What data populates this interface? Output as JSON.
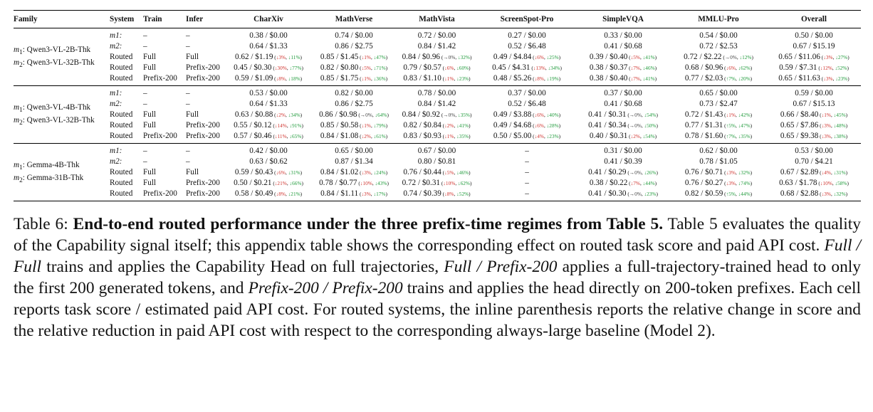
{
  "table": {
    "headers": [
      "Family",
      "System",
      "Train",
      "Infer",
      "CharXiv",
      "MathVerse",
      "MathVista",
      "ScreenSpot-Pro",
      "SimpleVQA",
      "MMLU-Pro",
      "Overall"
    ],
    "groups": [
      {
        "family": [
          {
            "m": "m",
            "sub": "1",
            "name": ": Qwen3-VL-2B-Thk"
          },
          {
            "m": "m",
            "sub": "2",
            "name": ": Qwen3-VL-32B-Thk"
          }
        ],
        "rows": [
          {
            "system": "m1:",
            "train": "–",
            "infer": "–",
            "cells": [
              {
                "v": "0.38 / $0.00"
              },
              {
                "v": "0.74 / $0.00"
              },
              {
                "v": "0.72 / $0.00"
              },
              {
                "v": "0.27 / $0.00"
              },
              {
                "v": "0.33 / $0.00"
              },
              {
                "v": "0.54 / $0.00"
              },
              {
                "v": "0.50 / $0.00"
              }
            ]
          },
          {
            "system": "m2:",
            "train": "–",
            "infer": "–",
            "cells": [
              {
                "v": "0.64 / $1.33"
              },
              {
                "v": "0.86 / $2.75"
              },
              {
                "v": "0.84 / $1.42"
              },
              {
                "v": "0.52 / $6.48"
              },
              {
                "v": "0.41 / $0.68"
              },
              {
                "v": "0.72 / $2.53"
              },
              {
                "v": "0.67 / $15.19"
              }
            ]
          },
          {
            "system": "Routed",
            "train": "Full",
            "infer": "Full",
            "cells": [
              {
                "v": "0.62 / $1.19",
                "a": "↓3%",
                "ac": "red",
                "b": "↓11%",
                "bc": "grn"
              },
              {
                "v": "0.85 / $1.45",
                "a": "↓1%",
                "ac": "red",
                "b": "↓47%",
                "bc": "grn"
              },
              {
                "v": "0.84 / $0.96",
                "a": "→0%",
                "ac": "gry",
                "b": "↓32%",
                "bc": "grn"
              },
              {
                "v": "0.49 / $4.84",
                "a": "↓6%",
                "ac": "red",
                "b": "↓25%",
                "bc": "grn"
              },
              {
                "v": "0.39 / $0.40",
                "a": "↓5%",
                "ac": "red",
                "b": "↓41%",
                "bc": "grn"
              },
              {
                "v": "0.72 / $2.22",
                "a": "→0%",
                "ac": "gry",
                "b": "↓12%",
                "bc": "grn"
              },
              {
                "v": "0.65 / $11.06",
                "a": "↓3%",
                "ac": "red",
                "b": "↓27%",
                "bc": "grn"
              }
            ]
          },
          {
            "system": "Routed",
            "train": "Full",
            "infer": "Prefix-200",
            "cells": [
              {
                "v": "0.45 / $0.30",
                "a": "↓30%",
                "ac": "red",
                "b": "↓77%",
                "bc": "grn"
              },
              {
                "v": "0.82 / $0.80",
                "a": "↓5%",
                "ac": "red",
                "b": "↓71%",
                "bc": "grn"
              },
              {
                "v": "0.79 / $0.57",
                "a": "↓6%",
                "ac": "red",
                "b": "↓60%",
                "bc": "grn"
              },
              {
                "v": "0.45 / $4.31",
                "a": "↓13%",
                "ac": "red",
                "b": "↓34%",
                "bc": "grn"
              },
              {
                "v": "0.38 / $0.37",
                "a": "↓7%",
                "ac": "red",
                "b": "↓46%",
                "bc": "grn"
              },
              {
                "v": "0.68 / $0.96",
                "a": "↓6%",
                "ac": "red",
                "b": "↓62%",
                "bc": "grn"
              },
              {
                "v": "0.59 / $7.31",
                "a": "↓12%",
                "ac": "red",
                "b": "↓52%",
                "bc": "grn"
              }
            ]
          },
          {
            "system": "Routed",
            "train": "Prefix-200",
            "infer": "Prefix-200",
            "cells": [
              {
                "v": "0.59 / $1.09",
                "a": "↓8%",
                "ac": "red",
                "b": "↓18%",
                "bc": "grn"
              },
              {
                "v": "0.85 / $1.75",
                "a": "↓1%",
                "ac": "red",
                "b": "↓36%",
                "bc": "grn"
              },
              {
                "v": "0.83 / $1.10",
                "a": "↓1%",
                "ac": "red",
                "b": "↓23%",
                "bc": "grn"
              },
              {
                "v": "0.48 / $5.26",
                "a": "↓8%",
                "ac": "red",
                "b": "↓19%",
                "bc": "grn"
              },
              {
                "v": "0.38 / $0.40",
                "a": "↓7%",
                "ac": "red",
                "b": "↓41%",
                "bc": "grn"
              },
              {
                "v": "0.77 / $2.03",
                "a": "↑7%",
                "ac": "grn",
                "b": "↓20%",
                "bc": "grn"
              },
              {
                "v": "0.65 / $11.63",
                "a": "↓3%",
                "ac": "red",
                "b": "↓23%",
                "bc": "grn"
              }
            ]
          }
        ]
      },
      {
        "family": [
          {
            "m": "m",
            "sub": "1",
            "name": ": Qwen3-VL-4B-Thk"
          },
          {
            "m": "m",
            "sub": "2",
            "name": ": Qwen3-VL-32B-Thk"
          }
        ],
        "rows": [
          {
            "system": "m1:",
            "train": "–",
            "infer": "–",
            "cells": [
              {
                "v": "0.53 / $0.00"
              },
              {
                "v": "0.82 / $0.00"
              },
              {
                "v": "0.78 / $0.00"
              },
              {
                "v": "0.37 / $0.00"
              },
              {
                "v": "0.37 / $0.00"
              },
              {
                "v": "0.65 / $0.00"
              },
              {
                "v": "0.59 / $0.00"
              }
            ]
          },
          {
            "system": "m2:",
            "train": "–",
            "infer": "–",
            "cells": [
              {
                "v": "0.64 / $1.33"
              },
              {
                "v": "0.86 / $2.75"
              },
              {
                "v": "0.84 / $1.42"
              },
              {
                "v": "0.52 / $6.48"
              },
              {
                "v": "0.41 / $0.68"
              },
              {
                "v": "0.73 / $2.47"
              },
              {
                "v": "0.67 / $15.13"
              }
            ]
          },
          {
            "system": "Routed",
            "train": "Full",
            "infer": "Full",
            "cells": [
              {
                "v": "0.63 / $0.88",
                "a": "↓2%",
                "ac": "red",
                "b": "↓34%",
                "bc": "grn"
              },
              {
                "v": "0.86 / $0.98",
                "a": "→0%",
                "ac": "gry",
                "b": "↓64%",
                "bc": "grn"
              },
              {
                "v": "0.84 / $0.92",
                "a": "→0%",
                "ac": "gry",
                "b": "↓35%",
                "bc": "grn"
              },
              {
                "v": "0.49 / $3.88",
                "a": "↓6%",
                "ac": "red",
                "b": "↓40%",
                "bc": "grn"
              },
              {
                "v": "0.41 / $0.31",
                "a": "→0%",
                "ac": "gry",
                "b": "↓54%",
                "bc": "grn"
              },
              {
                "v": "0.72 / $1.43",
                "a": "↓1%",
                "ac": "red",
                "b": "↓42%",
                "bc": "grn"
              },
              {
                "v": "0.66 / $8.40",
                "a": "↓1%",
                "ac": "red",
                "b": "↓45%",
                "bc": "grn"
              }
            ]
          },
          {
            "system": "Routed",
            "train": "Full",
            "infer": "Prefix-200",
            "cells": [
              {
                "v": "0.55 / $0.12",
                "a": "↓14%",
                "ac": "red",
                "b": "↓91%",
                "bc": "grn"
              },
              {
                "v": "0.85 / $0.58",
                "a": "↓1%",
                "ac": "red",
                "b": "↓79%",
                "bc": "grn"
              },
              {
                "v": "0.82 / $0.84",
                "a": "↓2%",
                "ac": "red",
                "b": "↓41%",
                "bc": "grn"
              },
              {
                "v": "0.49 / $4.68",
                "a": "↓6%",
                "ac": "red",
                "b": "↓28%",
                "bc": "grn"
              },
              {
                "v": "0.41 / $0.34",
                "a": "→0%",
                "ac": "gry",
                "b": "↓50%",
                "bc": "grn"
              },
              {
                "v": "0.77 / $1.31",
                "a": "↑5%",
                "ac": "grn",
                "b": "↓47%",
                "bc": "grn"
              },
              {
                "v": "0.65 / $7.86",
                "a": "↓3%",
                "ac": "red",
                "b": "↓48%",
                "bc": "grn"
              }
            ]
          },
          {
            "system": "Routed",
            "train": "Prefix-200",
            "infer": "Prefix-200",
            "cells": [
              {
                "v": "0.57 / $0.46",
                "a": "↓11%",
                "ac": "red",
                "b": "↓65%",
                "bc": "grn"
              },
              {
                "v": "0.84 / $1.08",
                "a": "↓2%",
                "ac": "red",
                "b": "↓61%",
                "bc": "grn"
              },
              {
                "v": "0.83 / $0.93",
                "a": "↓1%",
                "ac": "red",
                "b": "↓35%",
                "bc": "grn"
              },
              {
                "v": "0.50 / $5.00",
                "a": "↓4%",
                "ac": "red",
                "b": "↓23%",
                "bc": "grn"
              },
              {
                "v": "0.40 / $0.31",
                "a": "↓2%",
                "ac": "red",
                "b": "↓54%",
                "bc": "grn"
              },
              {
                "v": "0.78 / $1.60",
                "a": "↑7%",
                "ac": "grn",
                "b": "↓35%",
                "bc": "grn"
              },
              {
                "v": "0.65 / $9.38",
                "a": "↓3%",
                "ac": "red",
                "b": "↓38%",
                "bc": "grn"
              }
            ]
          }
        ]
      },
      {
        "family": [
          {
            "m": "m",
            "sub": "1",
            "name": ": Gemma-4B-Thk"
          },
          {
            "m": "m",
            "sub": "2",
            "name": ": Gemma-31B-Thk"
          }
        ],
        "rows": [
          {
            "system": "m1:",
            "train": "–",
            "infer": "–",
            "cells": [
              {
                "v": "0.42 / $0.00"
              },
              {
                "v": "0.65 / $0.00"
              },
              {
                "v": "0.67 / $0.00"
              },
              {
                "v": "–"
              },
              {
                "v": "0.31 / $0.00"
              },
              {
                "v": "0.62 / $0.00"
              },
              {
                "v": "0.53 / $0.00"
              }
            ]
          },
          {
            "system": "m2:",
            "train": "–",
            "infer": "–",
            "cells": [
              {
                "v": "0.63 / $0.62"
              },
              {
                "v": "0.87 / $1.34"
              },
              {
                "v": "0.80 / $0.81"
              },
              {
                "v": "–"
              },
              {
                "v": "0.41 / $0.39"
              },
              {
                "v": "0.78 / $1.05"
              },
              {
                "v": "0.70 / $4.21"
              }
            ]
          },
          {
            "system": "Routed",
            "train": "Full",
            "infer": "Full",
            "cells": [
              {
                "v": "0.59 / $0.43",
                "a": "↓6%",
                "ac": "red",
                "b": "↓31%",
                "bc": "grn"
              },
              {
                "v": "0.84 / $1.02",
                "a": "↓3%",
                "ac": "red",
                "b": "↓24%",
                "bc": "grn"
              },
              {
                "v": "0.76 / $0.44",
                "a": "↓5%",
                "ac": "red",
                "b": "↓46%",
                "bc": "grn"
              },
              {
                "v": "–"
              },
              {
                "v": "0.41 / $0.29",
                "a": "→0%",
                "ac": "gry",
                "b": "↓26%",
                "bc": "grn"
              },
              {
                "v": "0.76 / $0.71",
                "a": "↓3%",
                "ac": "red",
                "b": "↓32%",
                "bc": "grn"
              },
              {
                "v": "0.67 / $2.89",
                "a": "↓4%",
                "ac": "red",
                "b": "↓31%",
                "bc": "grn"
              }
            ]
          },
          {
            "system": "Routed",
            "train": "Full",
            "infer": "Prefix-200",
            "cells": [
              {
                "v": "0.50 / $0.21",
                "a": "↓21%",
                "ac": "red",
                "b": "↓66%",
                "bc": "grn"
              },
              {
                "v": "0.78 / $0.77",
                "a": "↓10%",
                "ac": "red",
                "b": "↓43%",
                "bc": "grn"
              },
              {
                "v": "0.72 / $0.31",
                "a": "↓10%",
                "ac": "red",
                "b": "↓62%",
                "bc": "grn"
              },
              {
                "v": "–"
              },
              {
                "v": "0.38 / $0.22",
                "a": "↓7%",
                "ac": "red",
                "b": "↓44%",
                "bc": "grn"
              },
              {
                "v": "0.76 / $0.27",
                "a": "↓3%",
                "ac": "red",
                "b": "↓74%",
                "bc": "grn"
              },
              {
                "v": "0.63 / $1.78",
                "a": "↓10%",
                "ac": "red",
                "b": "↓58%",
                "bc": "grn"
              }
            ]
          },
          {
            "system": "Routed",
            "train": "Prefix-200",
            "infer": "Prefix-200",
            "cells": [
              {
                "v": "0.58 / $0.49",
                "a": "↓8%",
                "ac": "red",
                "b": "↓21%",
                "bc": "grn"
              },
              {
                "v": "0.84 / $1.11",
                "a": "↓3%",
                "ac": "red",
                "b": "↓17%",
                "bc": "grn"
              },
              {
                "v": "0.74 / $0.39",
                "a": "↓8%",
                "ac": "red",
                "b": "↓52%",
                "bc": "grn"
              },
              {
                "v": "–"
              },
              {
                "v": "0.41 / $0.30",
                "a": "→0%",
                "ac": "gry",
                "b": "↓23%",
                "bc": "grn"
              },
              {
                "v": "0.82 / $0.59",
                "a": "↑5%",
                "ac": "grn",
                "b": "↓44%",
                "bc": "grn"
              },
              {
                "v": "0.68 / $2.88",
                "a": "↓3%",
                "ac": "red",
                "b": "↓32%",
                "bc": "grn"
              }
            ]
          }
        ]
      }
    ]
  },
  "caption": {
    "label": "Table 6: ",
    "title": "End-to-end routed performance under the three prefix-time regimes from Table 5.",
    "s1": " Table 5 evaluates the quality of the Capability signal itself; this appendix table shows the corresponding effect on routed task score and paid API cost. ",
    "e1": "Full / Full",
    "s2": " trains and applies the Capability Head on full trajectories, ",
    "e2": "Full / Prefix-200",
    "s3": " applies a full-trajectory-trained head to only the first 200 generated tokens, and ",
    "e3": "Prefix-200 / Prefix-200",
    "s4": " trains and applies the head directly on 200-token prefixes. Each cell reports task score / estimated paid API cost. For routed systems, the inline parenthesis reports the relative change in score and the relative reduction in paid API cost with respect to the corresponding always-large baseline (Model 2)."
  },
  "colors": {
    "decrease": "#d0302b",
    "increase": "#1e9a3a",
    "neutral": "#444444"
  }
}
